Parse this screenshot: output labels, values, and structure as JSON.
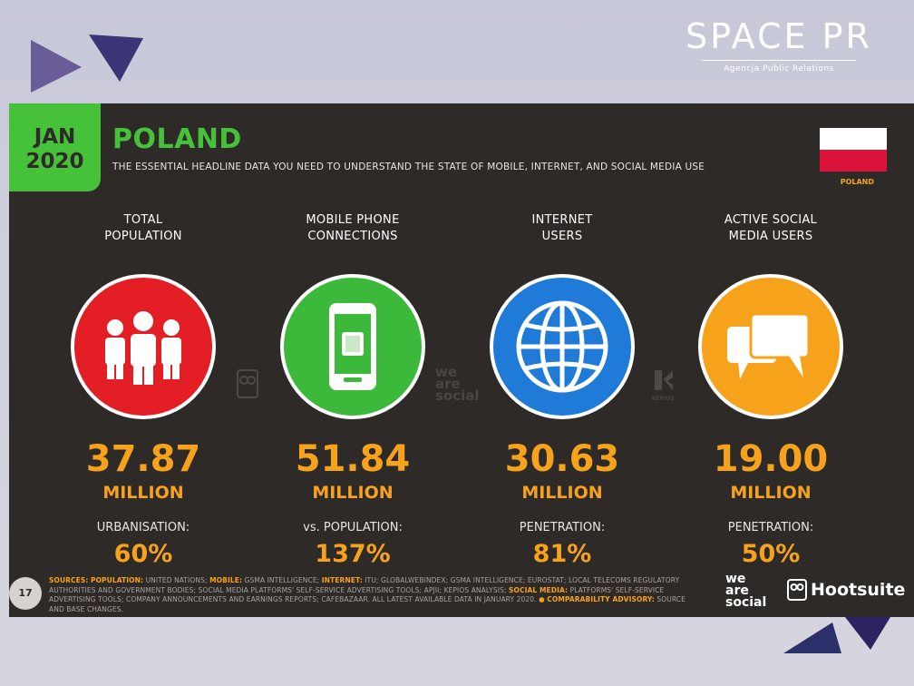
{
  "brand": {
    "name": "SPACE PR",
    "tagline": "Agencja Public Relations"
  },
  "header": {
    "date_line1": "JAN",
    "date_line2": "2020",
    "title": "POLAND",
    "subtitle": "THE ESSENTIAL HEADLINE DATA YOU NEED TO UNDERSTAND THE STATE OF MOBILE, INTERNET, AND SOCIAL MEDIA USE",
    "flag_label": "POLAND"
  },
  "colors": {
    "panel": "#2e2a28",
    "accent_green": "#46c23a",
    "accent_orange": "#f7a21b",
    "red": "#e31e24",
    "green": "#3cb93a",
    "blue": "#1f7ad8",
    "orange": "#f7a21b"
  },
  "stats": [
    {
      "label_line1": "TOTAL",
      "label_line2": "POPULATION",
      "icon": "people-icon",
      "value": "37.87",
      "unit": "MILLION",
      "sublabel": "URBANISATION:",
      "subvalue": "60%"
    },
    {
      "label_line1": "MOBILE PHONE",
      "label_line2": "CONNECTIONS",
      "icon": "mobile-phone-icon",
      "value": "51.84",
      "unit": "MILLION",
      "sublabel": "vs. POPULATION:",
      "subvalue": "137%"
    },
    {
      "label_line1": "INTERNET",
      "label_line2": "USERS",
      "icon": "globe-icon",
      "value": "30.63",
      "unit": "MILLION",
      "sublabel": "PENETRATION:",
      "subvalue": "81%"
    },
    {
      "label_line1": "ACTIVE SOCIAL",
      "label_line2": "MEDIA USERS",
      "icon": "chat-bubbles-icon",
      "value": "19.00",
      "unit": "MILLION",
      "sublabel": "PENETRATION:",
      "subvalue": "50%"
    }
  ],
  "watermarks": {
    "was1": "we",
    "was2": "are",
    "was3": "social",
    "kepios": "KEPIOS"
  },
  "footer": {
    "page_number": "17",
    "sources_label": "SOURCES:",
    "pop_label": "POPULATION:",
    "pop_text": "UNITED NATIONS;",
    "mobile_label": "MOBILE:",
    "mobile_text": "GSMA INTELLIGENCE;",
    "internet_label": "INTERNET:",
    "internet_text": "ITU; GLOBALWEBINDEX; GSMA INTELLIGENCE; EUROSTAT; LOCAL TELECOMS REGULATORY AUTHORITIES AND GOVERNMENT BODIES; SOCIAL MEDIA PLATFORMS' SELF-SERVICE ADVERTISING TOOLS; APJII; KEPIOS ANALYSIS;",
    "social_label": "SOCIAL MEDIA:",
    "social_text": "PLATFORMS' SELF-SERVICE ADVERTISING TOOLS; COMPANY ANNOUNCEMENTS AND EARNINGS REPORTS; CAFEBAZAAR. ALL LATEST AVAILABLE DATA IN JANUARY 2020.",
    "advisory_label": "COMPARABILITY ADVISORY:",
    "advisory_text": "SOURCE AND BASE CHANGES.",
    "was_line1": "we",
    "was_line2": "are",
    "was_line3": "social",
    "hootsuite": "Hootsuite"
  }
}
